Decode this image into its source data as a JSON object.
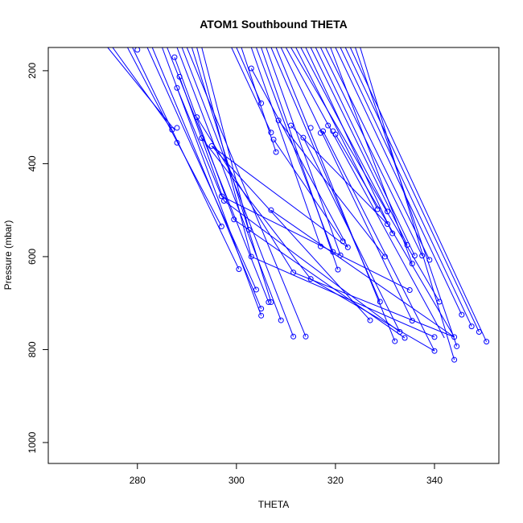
{
  "chart_data": {
    "type": "scatter",
    "title": "ATOM1 Southbound THETA",
    "xlabel": "THETA",
    "ylabel": "Pressure (mbar)",
    "xlim": [
      262,
      353
    ],
    "ylim": [
      1045,
      150
    ],
    "y_reversed": true,
    "grid": false,
    "legend": "none",
    "color": "#0000ff",
    "x_ticks": [
      280,
      300,
      320,
      340
    ],
    "x_tick_labels": [
      "280",
      "300",
      "320",
      "340"
    ],
    "y_ticks": [
      200,
      400,
      600,
      800,
      1000
    ],
    "y_tick_labels": [
      "200",
      "400",
      "600",
      "800",
      "1000"
    ],
    "points": [
      {
        "x": 280.0,
        "y": 155
      },
      {
        "x": 287.5,
        "y": 171
      },
      {
        "x": 288.5,
        "y": 213
      },
      {
        "x": 288.0,
        "y": 237
      },
      {
        "x": 287.0,
        "y": 327
      },
      {
        "x": 288.0,
        "y": 323
      },
      {
        "x": 288.0,
        "y": 355
      },
      {
        "x": 292.0,
        "y": 300
      },
      {
        "x": 293.0,
        "y": 345
      },
      {
        "x": 295.0,
        "y": 362
      },
      {
        "x": 297.0,
        "y": 470
      },
      {
        "x": 297.5,
        "y": 480
      },
      {
        "x": 299.5,
        "y": 520
      },
      {
        "x": 297.0,
        "y": 535
      },
      {
        "x": 302.5,
        "y": 542
      },
      {
        "x": 303.0,
        "y": 600
      },
      {
        "x": 300.5,
        "y": 627
      },
      {
        "x": 304.0,
        "y": 671
      },
      {
        "x": 305.0,
        "y": 712
      },
      {
        "x": 305.0,
        "y": 727
      },
      {
        "x": 306.5,
        "y": 698
      },
      {
        "x": 307.0,
        "y": 698
      },
      {
        "x": 309.0,
        "y": 737
      },
      {
        "x": 311.5,
        "y": 772
      },
      {
        "x": 314.0,
        "y": 772
      },
      {
        "x": 303.0,
        "y": 195
      },
      {
        "x": 305.0,
        "y": 270
      },
      {
        "x": 307.0,
        "y": 333
      },
      {
        "x": 307.5,
        "y": 348
      },
      {
        "x": 308.0,
        "y": 375
      },
      {
        "x": 308.5,
        "y": 307
      },
      {
        "x": 311.0,
        "y": 318
      },
      {
        "x": 313.5,
        "y": 344
      },
      {
        "x": 315.0,
        "y": 323
      },
      {
        "x": 317.0,
        "y": 334
      },
      {
        "x": 317.5,
        "y": 330
      },
      {
        "x": 318.5,
        "y": 318
      },
      {
        "x": 319.5,
        "y": 330
      },
      {
        "x": 320.0,
        "y": 337
      },
      {
        "x": 307.0,
        "y": 500
      },
      {
        "x": 311.5,
        "y": 634
      },
      {
        "x": 315.0,
        "y": 648
      },
      {
        "x": 317.0,
        "y": 578
      },
      {
        "x": 319.5,
        "y": 590
      },
      {
        "x": 320.5,
        "y": 628
      },
      {
        "x": 321.0,
        "y": 597
      },
      {
        "x": 321.5,
        "y": 567
      },
      {
        "x": 322.5,
        "y": 580
      },
      {
        "x": 327.0,
        "y": 737
      },
      {
        "x": 328.5,
        "y": 498
      },
      {
        "x": 329.0,
        "y": 697
      },
      {
        "x": 330.0,
        "y": 600
      },
      {
        "x": 330.5,
        "y": 503
      },
      {
        "x": 331.5,
        "y": 550
      },
      {
        "x": 330.5,
        "y": 530
      },
      {
        "x": 332.0,
        "y": 782
      },
      {
        "x": 333.0,
        "y": 762
      },
      {
        "x": 334.5,
        "y": 575
      },
      {
        "x": 334.0,
        "y": 775
      },
      {
        "x": 335.0,
        "y": 672
      },
      {
        "x": 335.5,
        "y": 615
      },
      {
        "x": 335.5,
        "y": 738
      },
      {
        "x": 336.0,
        "y": 598
      },
      {
        "x": 337.5,
        "y": 598
      },
      {
        "x": 339.0,
        "y": 607
      },
      {
        "x": 340.0,
        "y": 773
      },
      {
        "x": 340.0,
        "y": 803
      },
      {
        "x": 341.0,
        "y": 697
      },
      {
        "x": 344.0,
        "y": 773
      },
      {
        "x": 344.0,
        "y": 822
      },
      {
        "x": 344.5,
        "y": 793
      },
      {
        "x": 345.5,
        "y": 725
      },
      {
        "x": 347.5,
        "y": 750
      },
      {
        "x": 349.0,
        "y": 762
      },
      {
        "x": 350.5,
        "y": 783
      }
    ],
    "segments": [
      {
        "x1": 274,
        "y1": 150,
        "x2": 287.5,
        "y2": 327
      },
      {
        "x1": 275,
        "y1": 150,
        "x2": 287.0,
        "y2": 327
      },
      {
        "x1": 278,
        "y1": 150,
        "x2": 297.0,
        "y2": 535
      },
      {
        "x1": 279,
        "y1": 150,
        "x2": 300.5,
        "y2": 627
      },
      {
        "x1": 282,
        "y1": 150,
        "x2": 304.0,
        "y2": 671
      },
      {
        "x1": 283,
        "y1": 150,
        "x2": 305.0,
        "y2": 712
      },
      {
        "x1": 285,
        "y1": 150,
        "x2": 305.0,
        "y2": 727
      },
      {
        "x1": 286,
        "y1": 150,
        "x2": 306.5,
        "y2": 698
      },
      {
        "x1": 288,
        "y1": 150,
        "x2": 309.0,
        "y2": 737
      },
      {
        "x1": 289,
        "y1": 150,
        "x2": 311.5,
        "y2": 772
      },
      {
        "x1": 290,
        "y1": 150,
        "x2": 314.0,
        "y2": 772
      },
      {
        "x1": 291,
        "y1": 150,
        "x2": 307.0,
        "y2": 698
      },
      {
        "x1": 292,
        "y1": 150,
        "x2": 303.0,
        "y2": 600
      },
      {
        "x1": 293,
        "y1": 150,
        "x2": 302.5,
        "y2": 542
      },
      {
        "x1": 287.5,
        "y1": 171,
        "x2": 299.5,
        "y2": 520
      },
      {
        "x1": 288.5,
        "y1": 213,
        "x2": 297.5,
        "y2": 480
      },
      {
        "x1": 288.0,
        "y1": 237,
        "x2": 297.0,
        "y2": 470
      },
      {
        "x1": 292.0,
        "y1": 300,
        "x2": 311.5,
        "y2": 634
      },
      {
        "x1": 293.0,
        "y1": 345,
        "x2": 315.0,
        "y2": 648
      },
      {
        "x1": 295.0,
        "y1": 362,
        "x2": 327.0,
        "y2": 737
      },
      {
        "x1": 295.0,
        "y1": 362,
        "x2": 322.5,
        "y2": 580
      },
      {
        "x1": 297.0,
        "y1": 470,
        "x2": 335.0,
        "y2": 672
      },
      {
        "x1": 297.5,
        "y1": 480,
        "x2": 333.0,
        "y2": 762
      },
      {
        "x1": 299.5,
        "y1": 520,
        "x2": 334.0,
        "y2": 775
      },
      {
        "x1": 303.0,
        "y1": 600,
        "x2": 340.0,
        "y2": 773
      },
      {
        "x1": 307.0,
        "y1": 500,
        "x2": 344.0,
        "y2": 773
      },
      {
        "x1": 311.5,
        "y1": 634,
        "x2": 344.0,
        "y2": 773
      },
      {
        "x1": 315.0,
        "y1": 648,
        "x2": 340.0,
        "y2": 803
      },
      {
        "x1": 299,
        "y1": 150,
        "x2": 307.0,
        "y2": 333
      },
      {
        "x1": 300,
        "y1": 150,
        "x2": 305.0,
        "y2": 270
      },
      {
        "x1": 301,
        "y1": 150,
        "x2": 308.0,
        "y2": 375
      },
      {
        "x1": 303,
        "y1": 150,
        "x2": 317.0,
        "y2": 578
      },
      {
        "x1": 304,
        "y1": 150,
        "x2": 319.5,
        "y2": 590
      },
      {
        "x1": 305,
        "y1": 150,
        "x2": 320.5,
        "y2": 628
      },
      {
        "x1": 306,
        "y1": 150,
        "x2": 321.0,
        "y2": 597
      },
      {
        "x1": 307,
        "y1": 150,
        "x2": 329.0,
        "y2": 697
      },
      {
        "x1": 308,
        "y1": 150,
        "x2": 332.0,
        "y2": 782
      },
      {
        "x1": 309,
        "y1": 150,
        "x2": 335.5,
        "y2": 738
      },
      {
        "x1": 310,
        "y1": 150,
        "x2": 342.0,
        "y2": 775
      },
      {
        "x1": 311,
        "y1": 150,
        "x2": 341.0,
        "y2": 697
      },
      {
        "x1": 312,
        "y1": 150,
        "x2": 328.5,
        "y2": 498
      },
      {
        "x1": 313,
        "y1": 150,
        "x2": 330.5,
        "y2": 503
      },
      {
        "x1": 314,
        "y1": 150,
        "x2": 331.5,
        "y2": 550
      },
      {
        "x1": 315,
        "y1": 150,
        "x2": 334.5,
        "y2": 575
      },
      {
        "x1": 316,
        "y1": 150,
        "x2": 336.0,
        "y2": 598
      },
      {
        "x1": 317,
        "y1": 150,
        "x2": 337.5,
        "y2": 598
      },
      {
        "x1": 318,
        "y1": 150,
        "x2": 339.0,
        "y2": 607
      },
      {
        "x1": 319,
        "y1": 150,
        "x2": 335.5,
        "y2": 615
      },
      {
        "x1": 320,
        "y1": 150,
        "x2": 345.5,
        "y2": 725
      },
      {
        "x1": 321,
        "y1": 150,
        "x2": 347.5,
        "y2": 750
      },
      {
        "x1": 322,
        "y1": 150,
        "x2": 349.0,
        "y2": 762
      },
      {
        "x1": 323,
        "y1": 150,
        "x2": 350.5,
        "y2": 783
      },
      {
        "x1": 324,
        "y1": 150,
        "x2": 344.5,
        "y2": 793
      },
      {
        "x1": 325,
        "y1": 150,
        "x2": 344.0,
        "y2": 822
      },
      {
        "x1": 308.5,
        "y1": 307,
        "x2": 330.0,
        "y2": 600
      },
      {
        "x1": 311.0,
        "y1": 318,
        "x2": 330.5,
        "y2": 530
      },
      {
        "x1": 313.5,
        "y1": 344,
        "x2": 333.0,
        "y2": 762
      },
      {
        "x1": 307.5,
        "y1": 348,
        "x2": 321.5,
        "y2": 567
      },
      {
        "x1": 317.5,
        "y1": 330,
        "x2": 340.0,
        "y2": 803
      },
      {
        "x1": 320.0,
        "y1": 337,
        "x2": 344.0,
        "y2": 773
      },
      {
        "x1": 303.0,
        "y1": 195,
        "x2": 322.5,
        "y2": 580
      }
    ]
  }
}
